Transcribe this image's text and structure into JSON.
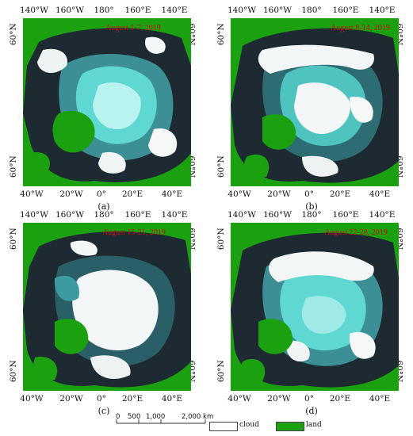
{
  "panels": [
    {
      "label": "(a)",
      "date": "August 1-7, 2019"
    },
    {
      "label": "(b)",
      "date": "August 8-14, 2019"
    },
    {
      "label": "(c)",
      "date": "August 15-21, 2019"
    },
    {
      "label": "(d)",
      "date": "August 22-28, 2019"
    }
  ],
  "ticks": {
    "top": [
      "140°W",
      "160°W",
      "180°",
      "160°E",
      "140°E"
    ],
    "bottom": [
      "40°W",
      "20°W",
      "0°",
      "20°E",
      "40°E"
    ],
    "side": "60°N"
  },
  "scalebar": {
    "labels": [
      "0",
      "500",
      "1,000",
      "2,000 km"
    ]
  },
  "legend": {
    "cloud_label": "cloud",
    "land_label": "land",
    "cloud_color": "#ffffff",
    "land_color": "#1ba10f"
  },
  "colors": {
    "land": "#1ba10f",
    "ocean": "#1d2a32",
    "ice": "#5fd7d2",
    "cloud": "#ffffff"
  }
}
